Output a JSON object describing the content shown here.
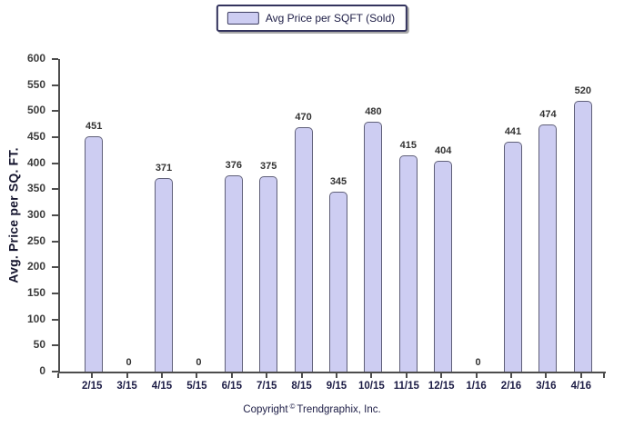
{
  "legend": {
    "label": "Avg Price per SQFT (Sold)"
  },
  "footer": {
    "pre": "Copyright",
    "symbol": "©",
    "post": "Trendgraphix, Inc."
  },
  "colors": {
    "bar_fill": "#cdcdf2",
    "bar_border": "#5f5f78",
    "axis_line": "#4d4d4d",
    "ytick_text": "#3c3c3c",
    "value_text": "#333333",
    "xtick_text": "#1c1c45",
    "legend_border": "#34345e",
    "legend_text": "#1c1c45",
    "background": "#ffffff"
  },
  "chart_data": {
    "type": "bar",
    "title": "",
    "series_name": "Avg Price per SQFT (Sold)",
    "categories": [
      "2/15",
      "3/15",
      "4/15",
      "5/15",
      "6/15",
      "7/15",
      "8/15",
      "9/15",
      "10/15",
      "11/15",
      "12/15",
      "1/16",
      "2/16",
      "3/16",
      "4/16"
    ],
    "values": [
      451,
      0,
      371,
      0,
      376,
      375,
      470,
      345,
      480,
      415,
      404,
      0,
      441,
      474,
      520
    ],
    "xlabel": "",
    "ylabel": "Avg. Price per SQ. FT.",
    "ylim": [
      0,
      600
    ],
    "ytick_step": 50,
    "grid": false,
    "legend_position": "top-center",
    "bar_style": "rounded-top",
    "zero_value_label": "0"
  }
}
